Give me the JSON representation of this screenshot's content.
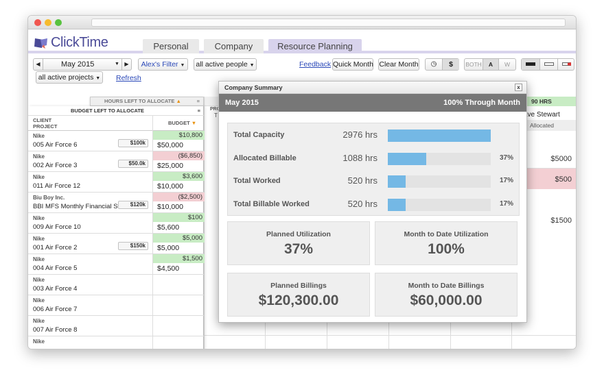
{
  "app": {
    "name": "ClickTime"
  },
  "tabs": [
    {
      "label": "Personal",
      "active": false
    },
    {
      "label": "Company",
      "active": false
    },
    {
      "label": "Resource Planning",
      "active": true
    }
  ],
  "toolbar": {
    "month": "May 2015",
    "filter": "Alex's Filter",
    "people_filter": "all active people",
    "project_filter": "all active projects",
    "refresh": "Refresh",
    "feedback": "Feedback",
    "quick_month": "Quick Month",
    "clear_month": "Clear Month",
    "currency_symbol": "$",
    "both": "BOTH",
    "a": "A",
    "w": "W"
  },
  "left_panel": {
    "hours_left_header": "HOURS LEFT TO ALLOCATE",
    "budget_left_header": "BUDGET LEFT TO ALLOCATE",
    "col_client": "CLIENT",
    "col_project": "PROJECT",
    "col_budget": "BUDGET"
  },
  "rows": [
    {
      "client": "Nike",
      "project": "005 Air Force 6",
      "budget_badge": "$100k",
      "remaining": "$10,800",
      "remaining_state": "pos",
      "amount": "$50,000"
    },
    {
      "client": "Nike",
      "project": "002 Air Force 3",
      "budget_badge": "$50.0k",
      "remaining": "($6,850)",
      "remaining_state": "neg",
      "amount": "$25,000"
    },
    {
      "client": "Nike",
      "project": "011 Air Force 12",
      "budget_badge": "",
      "remaining": "$3,600",
      "remaining_state": "pos",
      "amount": "$10,000"
    },
    {
      "client": "Biu Boy Inc.",
      "project": "BBI MFS Monthly Financial Stat",
      "budget_badge": "$120k",
      "remaining": "($2,500)",
      "remaining_state": "neg",
      "amount": "$10,000"
    },
    {
      "client": "Nike",
      "project": "009 Air Force 10",
      "budget_badge": "",
      "remaining": "$100",
      "remaining_state": "pos",
      "amount": "$5,600"
    },
    {
      "client": "Nike",
      "project": "001 Air Force 2",
      "budget_badge": "$150k",
      "remaining": "$5,000",
      "remaining_state": "pos",
      "amount": "$5,000"
    },
    {
      "client": "Nike",
      "project": "004 Air Force 5",
      "budget_badge": "",
      "remaining": "$1,500",
      "remaining_state": "pos",
      "amount": "$4,500"
    },
    {
      "client": "Nike",
      "project": "003 Air Force 4",
      "budget_badge": "",
      "remaining": "",
      "remaining_state": "",
      "amount": ""
    },
    {
      "client": "Nike",
      "project": "006 Air Force 7",
      "budget_badge": "",
      "remaining": "",
      "remaining_state": "",
      "amount": ""
    },
    {
      "client": "Nike",
      "project": "007 Air Force 8",
      "budget_badge": "",
      "remaining": "",
      "remaining_state": "",
      "amount": ""
    },
    {
      "client": "Nike",
      "project": "",
      "budget_badge": "",
      "remaining": "",
      "remaining_state": "",
      "amount": ""
    }
  ],
  "background_grid": {
    "pro_label": "PRO",
    "t_label": "T",
    "hrs_label": "90 HRS",
    "person": "ave Stewart",
    "allocated": "Allocated",
    "values": [
      "$5000",
      "$500",
      "$1500"
    ]
  },
  "modal": {
    "title": "Company Summary",
    "close": "x",
    "period": "May 2015",
    "progress_label": "100% Through Month",
    "stats": [
      {
        "label": "Total Capacity",
        "value": "2976 hrs",
        "fraction": 1.0,
        "pct": ""
      },
      {
        "label": "Allocated Billable",
        "value": "1088 hrs",
        "fraction": 0.37,
        "pct": "37%"
      },
      {
        "label": "Total Worked",
        "value": "520 hrs",
        "fraction": 0.17,
        "pct": "17%"
      },
      {
        "label": "Total Billable Worked",
        "value": "520 hrs",
        "fraction": 0.17,
        "pct": "17%"
      }
    ],
    "cards": [
      {
        "title": "Planned Utilization",
        "value": "37%"
      },
      {
        "title": "Month to Date Utilization",
        "value": "100%"
      },
      {
        "title": "Planned Billings",
        "value": "$120,300.00"
      },
      {
        "title": "Month to Date Billings",
        "value": "$60,000.00"
      }
    ]
  }
}
